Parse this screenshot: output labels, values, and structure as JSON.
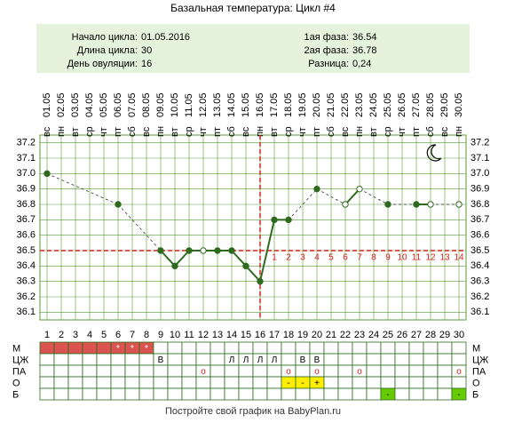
{
  "chart_data": {
    "type": "line",
    "title": "Базальная температура: Цикл #4",
    "info_left": [
      {
        "label": "Начало цикла:",
        "value": "01.05.2016"
      },
      {
        "label": "Длина цикла:",
        "value": "30"
      },
      {
        "label": "День овуляции:",
        "value": "16"
      }
    ],
    "info_right": [
      {
        "label": "1ая фаза:",
        "value": "36.54"
      },
      {
        "label": "2ая фаза:",
        "value": "36.78"
      },
      {
        "label": "Разница:",
        "value": "0,24"
      }
    ],
    "categories": [
      "01.05",
      "02.05",
      "03.05",
      "04.05",
      "05.05",
      "06.05",
      "07.05",
      "08.05",
      "09.05",
      "10.05",
      "11.05",
      "12.05",
      "13.05",
      "14.05",
      "15.05",
      "16.05",
      "17.05",
      "18.05",
      "19.05",
      "20.05",
      "21.05",
      "22.05",
      "23.05",
      "24.05",
      "25.05",
      "26.05",
      "27.05",
      "28.05",
      "29.05",
      "30.05"
    ],
    "weekdays": [
      "вс",
      "пн",
      "вт",
      "ср",
      "чт",
      "пт",
      "сб",
      "вс",
      "пн",
      "вт",
      "ср",
      "чт",
      "пт",
      "сб",
      "вс",
      "пн",
      "вт",
      "ср",
      "чт",
      "пт",
      "сб",
      "вс",
      "пн",
      "вт",
      "ср",
      "чт",
      "пт",
      "сб",
      "вс",
      "пн"
    ],
    "x": [
      1,
      2,
      3,
      4,
      5,
      6,
      7,
      8,
      9,
      10,
      11,
      12,
      13,
      14,
      15,
      16,
      17,
      18,
      19,
      20,
      21,
      22,
      23,
      24,
      25,
      26,
      27,
      28,
      29,
      30
    ],
    "xlim": [
      0.5,
      30.5
    ],
    "series": [
      {
        "color": "#2e6b1f",
        "values": [
          37.0,
          null,
          null,
          null,
          null,
          36.8,
          null,
          null,
          36.5,
          36.4,
          36.5,
          36.5,
          36.5,
          36.5,
          36.4,
          36.3,
          36.7,
          36.7,
          null,
          36.9,
          null,
          36.8,
          36.9,
          null,
          36.8,
          null,
          36.8,
          36.8,
          null,
          36.8
        ],
        "hollow": [
          false,
          false,
          false,
          false,
          false,
          false,
          false,
          false,
          false,
          false,
          false,
          true,
          false,
          false,
          false,
          false,
          false,
          false,
          false,
          false,
          false,
          true,
          true,
          false,
          false,
          false,
          false,
          true,
          false,
          true
        ]
      }
    ],
    "ylim": [
      36.05,
      37.25
    ],
    "yticks": [
      37.2,
      37.1,
      {
        "value": 37.0,
        "label": "37.0"
      },
      36.9,
      36.8,
      36.7,
      36.6,
      36.5,
      36.4,
      36.3,
      36.2,
      36.1
    ],
    "coverline": 36.5,
    "ovulation_day": 16,
    "line_color": "#d42020",
    "phase_days": [
      1,
      2,
      3,
      4,
      5,
      6,
      7,
      8,
      9,
      10,
      11,
      12,
      13,
      14
    ],
    "table": {
      "rows": [
        {
          "label": "М",
          "text_color": "#ffffff",
          "cells": [
            null,
            null,
            null,
            null,
            null,
            "*",
            "*",
            "*",
            null,
            null,
            null,
            null,
            null,
            null,
            null,
            null,
            null,
            null,
            null,
            null,
            null,
            null,
            null,
            null,
            null,
            null,
            null,
            null,
            null,
            null
          ],
          "fills": [
            "#d9534f",
            "#d9534f",
            "#d9534f",
            "#d9534f",
            "#d9534f",
            "#d9534f",
            "#d9534f",
            "#d9534f",
            null,
            null,
            null,
            null,
            null,
            null,
            null,
            null,
            null,
            null,
            null,
            null,
            null,
            null,
            null,
            null,
            null,
            null,
            null,
            null,
            null,
            null
          ]
        },
        {
          "label": "ЦЖ",
          "text_color": "#000000",
          "cells": [
            null,
            null,
            null,
            null,
            null,
            null,
            null,
            null,
            "В",
            null,
            null,
            null,
            null,
            "Л",
            "Л",
            "Л",
            "Л",
            null,
            "В",
            "В",
            null,
            null,
            null,
            null,
            null,
            null,
            null,
            null,
            null,
            null
          ],
          "fills": [
            null,
            null,
            null,
            null,
            null,
            null,
            null,
            null,
            null,
            null,
            null,
            null,
            null,
            null,
            null,
            null,
            null,
            null,
            null,
            null,
            null,
            null,
            null,
            null,
            null,
            null,
            null,
            null,
            null,
            null
          ]
        },
        {
          "label": "ПА",
          "text_color": "#d42020",
          "cells": [
            null,
            null,
            null,
            null,
            null,
            null,
            null,
            null,
            null,
            null,
            null,
            "o",
            null,
            null,
            null,
            null,
            null,
            "o",
            null,
            "o",
            null,
            null,
            "o",
            null,
            null,
            null,
            null,
            null,
            null,
            "o"
          ],
          "fills": [
            null,
            null,
            null,
            null,
            null,
            null,
            null,
            null,
            null,
            null,
            null,
            null,
            null,
            null,
            null,
            null,
            null,
            null,
            null,
            null,
            null,
            null,
            null,
            null,
            null,
            null,
            null,
            null,
            null,
            null
          ]
        },
        {
          "label": "О",
          "text_color": "#000000",
          "cells": [
            null,
            null,
            null,
            null,
            null,
            null,
            null,
            null,
            null,
            null,
            null,
            null,
            null,
            null,
            null,
            null,
            null,
            "-",
            "-",
            "+",
            null,
            null,
            null,
            null,
            null,
            null,
            null,
            null,
            null,
            null
          ],
          "fills": [
            null,
            null,
            null,
            null,
            null,
            null,
            null,
            null,
            null,
            null,
            null,
            null,
            null,
            null,
            null,
            null,
            null,
            "#ffee00",
            "#ffee00",
            "#ffee00",
            null,
            null,
            null,
            null,
            null,
            null,
            null,
            null,
            null,
            null
          ]
        },
        {
          "label": "Б",
          "text_color": "#000000",
          "cells": [
            null,
            null,
            null,
            null,
            null,
            null,
            null,
            null,
            null,
            null,
            null,
            null,
            null,
            null,
            null,
            null,
            null,
            null,
            null,
            null,
            null,
            null,
            null,
            null,
            "-",
            null,
            null,
            null,
            null,
            "-"
          ],
          "fills": [
            null,
            null,
            null,
            null,
            null,
            null,
            null,
            null,
            null,
            null,
            null,
            null,
            null,
            null,
            null,
            null,
            null,
            null,
            null,
            null,
            null,
            null,
            null,
            null,
            "#66cc00",
            null,
            null,
            null,
            null,
            "#66cc00"
          ]
        }
      ]
    },
    "footer": "Постройте свой график на BabyPlan.ru"
  }
}
